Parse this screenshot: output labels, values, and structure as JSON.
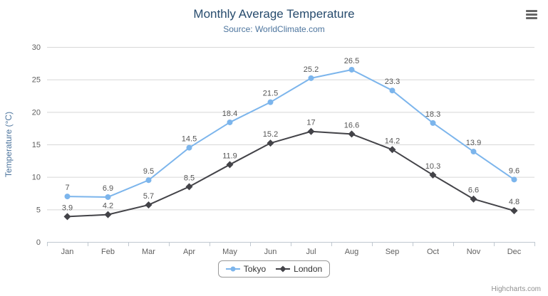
{
  "credits": "Highcharts.com",
  "icons": {
    "context_menu": "hamburger-icon"
  },
  "colors": {
    "title": "#274b6d",
    "subtitle": "#4d759e",
    "axis_label": "#606060",
    "gridline": "#d8d8d8",
    "axis_line": "#c0c8d0",
    "tokyo_series": "#7cb5ec",
    "london_series": "#434348"
  },
  "chart_data": {
    "type": "line",
    "title": "Monthly Average Temperature",
    "subtitle": "Source: WorldClimate.com",
    "categories": [
      "Jan",
      "Feb",
      "Mar",
      "Apr",
      "May",
      "Jun",
      "Jul",
      "Aug",
      "Sep",
      "Oct",
      "Nov",
      "Dec"
    ],
    "series": [
      {
        "name": "Tokyo",
        "color": "#7cb5ec",
        "marker": "circle",
        "values": [
          7,
          6.9,
          9.5,
          14.5,
          18.4,
          21.5,
          25.2,
          26.5,
          23.3,
          18.3,
          13.9,
          9.6
        ]
      },
      {
        "name": "London",
        "color": "#434348",
        "marker": "diamond",
        "values": [
          3.9,
          4.2,
          5.7,
          8.5,
          11.9,
          15.2,
          17,
          16.6,
          14.2,
          10.3,
          6.6,
          4.8
        ]
      }
    ],
    "xlabel": "",
    "ylabel": "Temperature (°C)",
    "ylim": [
      0,
      30
    ],
    "ytick_interval": 5,
    "grid": true,
    "legend_position": "bottom",
    "data_labels": true
  }
}
